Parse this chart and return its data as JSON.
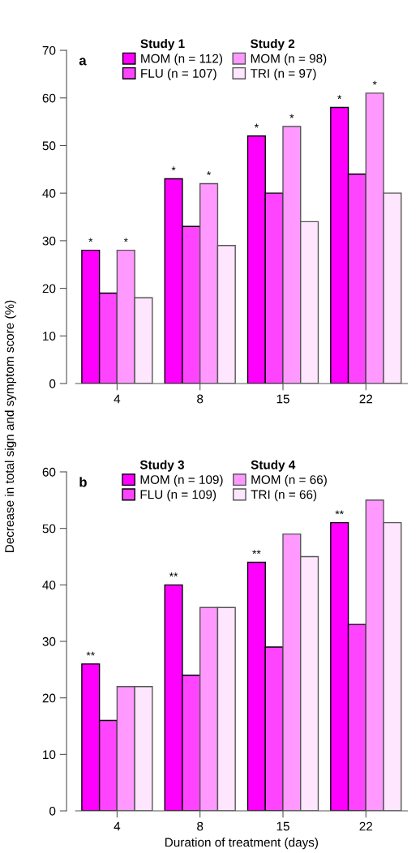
{
  "chart_data": [
    {
      "type": "bar",
      "title": "a",
      "ylabel": "Decrease in total sign and symptom score (%)",
      "annotations": [
        "Study 1",
        "Study 2"
      ],
      "categories": [
        "4",
        "8",
        "15",
        "22"
      ],
      "ylim": [
        0,
        70
      ],
      "yticks": [
        0,
        10,
        20,
        30,
        40,
        50,
        60,
        70
      ],
      "grid": false,
      "legend": "top",
      "series": [
        {
          "name": "MOM (n = 112)",
          "color": "#ff00ff",
          "values": [
            28,
            43,
            52,
            58
          ],
          "value_labels": [
            "*",
            "*",
            "*",
            "*"
          ]
        },
        {
          "name": "FLU (n = 107)",
          "color": "#ff44ff",
          "values": [
            19,
            33,
            40,
            44
          ]
        },
        {
          "name": "MOM (n = 98)",
          "color": "#ff99ff",
          "values": [
            28,
            42,
            54,
            61
          ],
          "value_labels": [
            "*",
            "*",
            "*",
            "*"
          ]
        },
        {
          "name": "TRI (n = 97)",
          "color": "#ffe6ff",
          "values": [
            18,
            29,
            34,
            40
          ]
        }
      ]
    },
    {
      "type": "bar",
      "title": "b",
      "xlabel": "Duration of treatment (days)",
      "annotations": [
        "Study 3",
        "Study 4"
      ],
      "categories": [
        "4",
        "8",
        "15",
        "22"
      ],
      "ylim": [
        0,
        60
      ],
      "yticks": [
        0,
        10,
        20,
        30,
        40,
        50,
        60
      ],
      "grid": false,
      "legend": "top",
      "series": [
        {
          "name": "MOM (n = 109)",
          "color": "#ff00ff",
          "values": [
            26,
            40,
            44,
            51
          ],
          "value_labels": [
            "**",
            "**",
            "**",
            "**"
          ]
        },
        {
          "name": "FLU (n = 109)",
          "color": "#ff44ff",
          "values": [
            16,
            24,
            29,
            33
          ]
        },
        {
          "name": "MOM (n = 66)",
          "color": "#ff99ff",
          "values": [
            22,
            36,
            49,
            55
          ]
        },
        {
          "name": "TRI (n = 66)",
          "color": "#ffe6ff",
          "values": [
            22,
            36,
            45,
            51
          ]
        }
      ]
    }
  ]
}
